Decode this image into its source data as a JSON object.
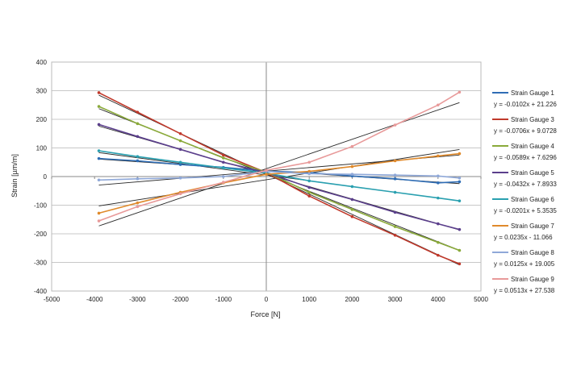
{
  "chart_data": {
    "type": "line",
    "title": "",
    "xlabel": "Force [N]",
    "ylabel": "Strain [µm/m]",
    "xlim": [
      -5000,
      5000
    ],
    "ylim": [
      -400,
      400
    ],
    "x_ticks": [
      -5000,
      -4000,
      -3000,
      -2000,
      -1000,
      0,
      1000,
      2000,
      3000,
      4000,
      5000
    ],
    "y_ticks": [
      -400,
      -300,
      -200,
      -100,
      0,
      100,
      200,
      300,
      400
    ],
    "grid": "horizontal",
    "legend_position": "right",
    "trendline_color": "#2a2a2a",
    "x": [
      -3900,
      -3000,
      -2000,
      -1000,
      0,
      1000,
      2000,
      3000,
      4000,
      4500
    ],
    "series": [
      {
        "name": "Strain Gauge 1",
        "equation": "y = -0.0102x + 21.226",
        "color": "#2f6db5",
        "values": [
          63,
          55,
          42,
          32,
          19,
          14,
          2,
          -8,
          -22,
          -18
        ]
      },
      {
        "name": "Strain Gauge 3",
        "equation": "y = -0.0706x + 9.0728",
        "color": "#c0392b",
        "values": [
          293,
          225,
          150,
          75,
          14,
          -68,
          -140,
          -205,
          -275,
          -305
        ]
      },
      {
        "name": "Strain Gauge 4",
        "equation": "y = -0.0589x + 7.6296",
        "color": "#8aaa3a",
        "values": [
          245,
          185,
          125,
          65,
          15,
          -55,
          -115,
          -175,
          -230,
          -258
        ]
      },
      {
        "name": "Strain Gauge  5",
        "equation": "y = -0.0432x + 7.8933",
        "color": "#5b3f8c",
        "values": [
          182,
          140,
          95,
          50,
          14,
          -38,
          -80,
          -125,
          -165,
          -185
        ]
      },
      {
        "name": "Strain Gauge 6",
        "equation": "y = -0.0201x + 5.3535",
        "color": "#2aa0b0",
        "values": [
          90,
          70,
          50,
          30,
          12,
          -15,
          -35,
          -55,
          -75,
          -85
        ]
      },
      {
        "name": "Strain Gauge 7",
        "equation": "y = 0.0235x - 11.066",
        "color": "#e08a2c",
        "values": [
          -128,
          -92,
          -55,
          -22,
          8,
          18,
          35,
          55,
          72,
          80
        ]
      },
      {
        "name": "Strain Gauge 8",
        "equation": "y = 0.0125x + 19.005",
        "color": "#8fa8d8",
        "values": [
          -12,
          -8,
          -5,
          0,
          18,
          10,
          8,
          5,
          2,
          -5
        ]
      },
      {
        "name": "Strain Gauge 9",
        "equation": "y = 0.0513x + 27.538",
        "color": "#e89a9a",
        "values": [
          -155,
          -105,
          -60,
          -20,
          22,
          50,
          105,
          180,
          250,
          295
        ]
      }
    ]
  }
}
